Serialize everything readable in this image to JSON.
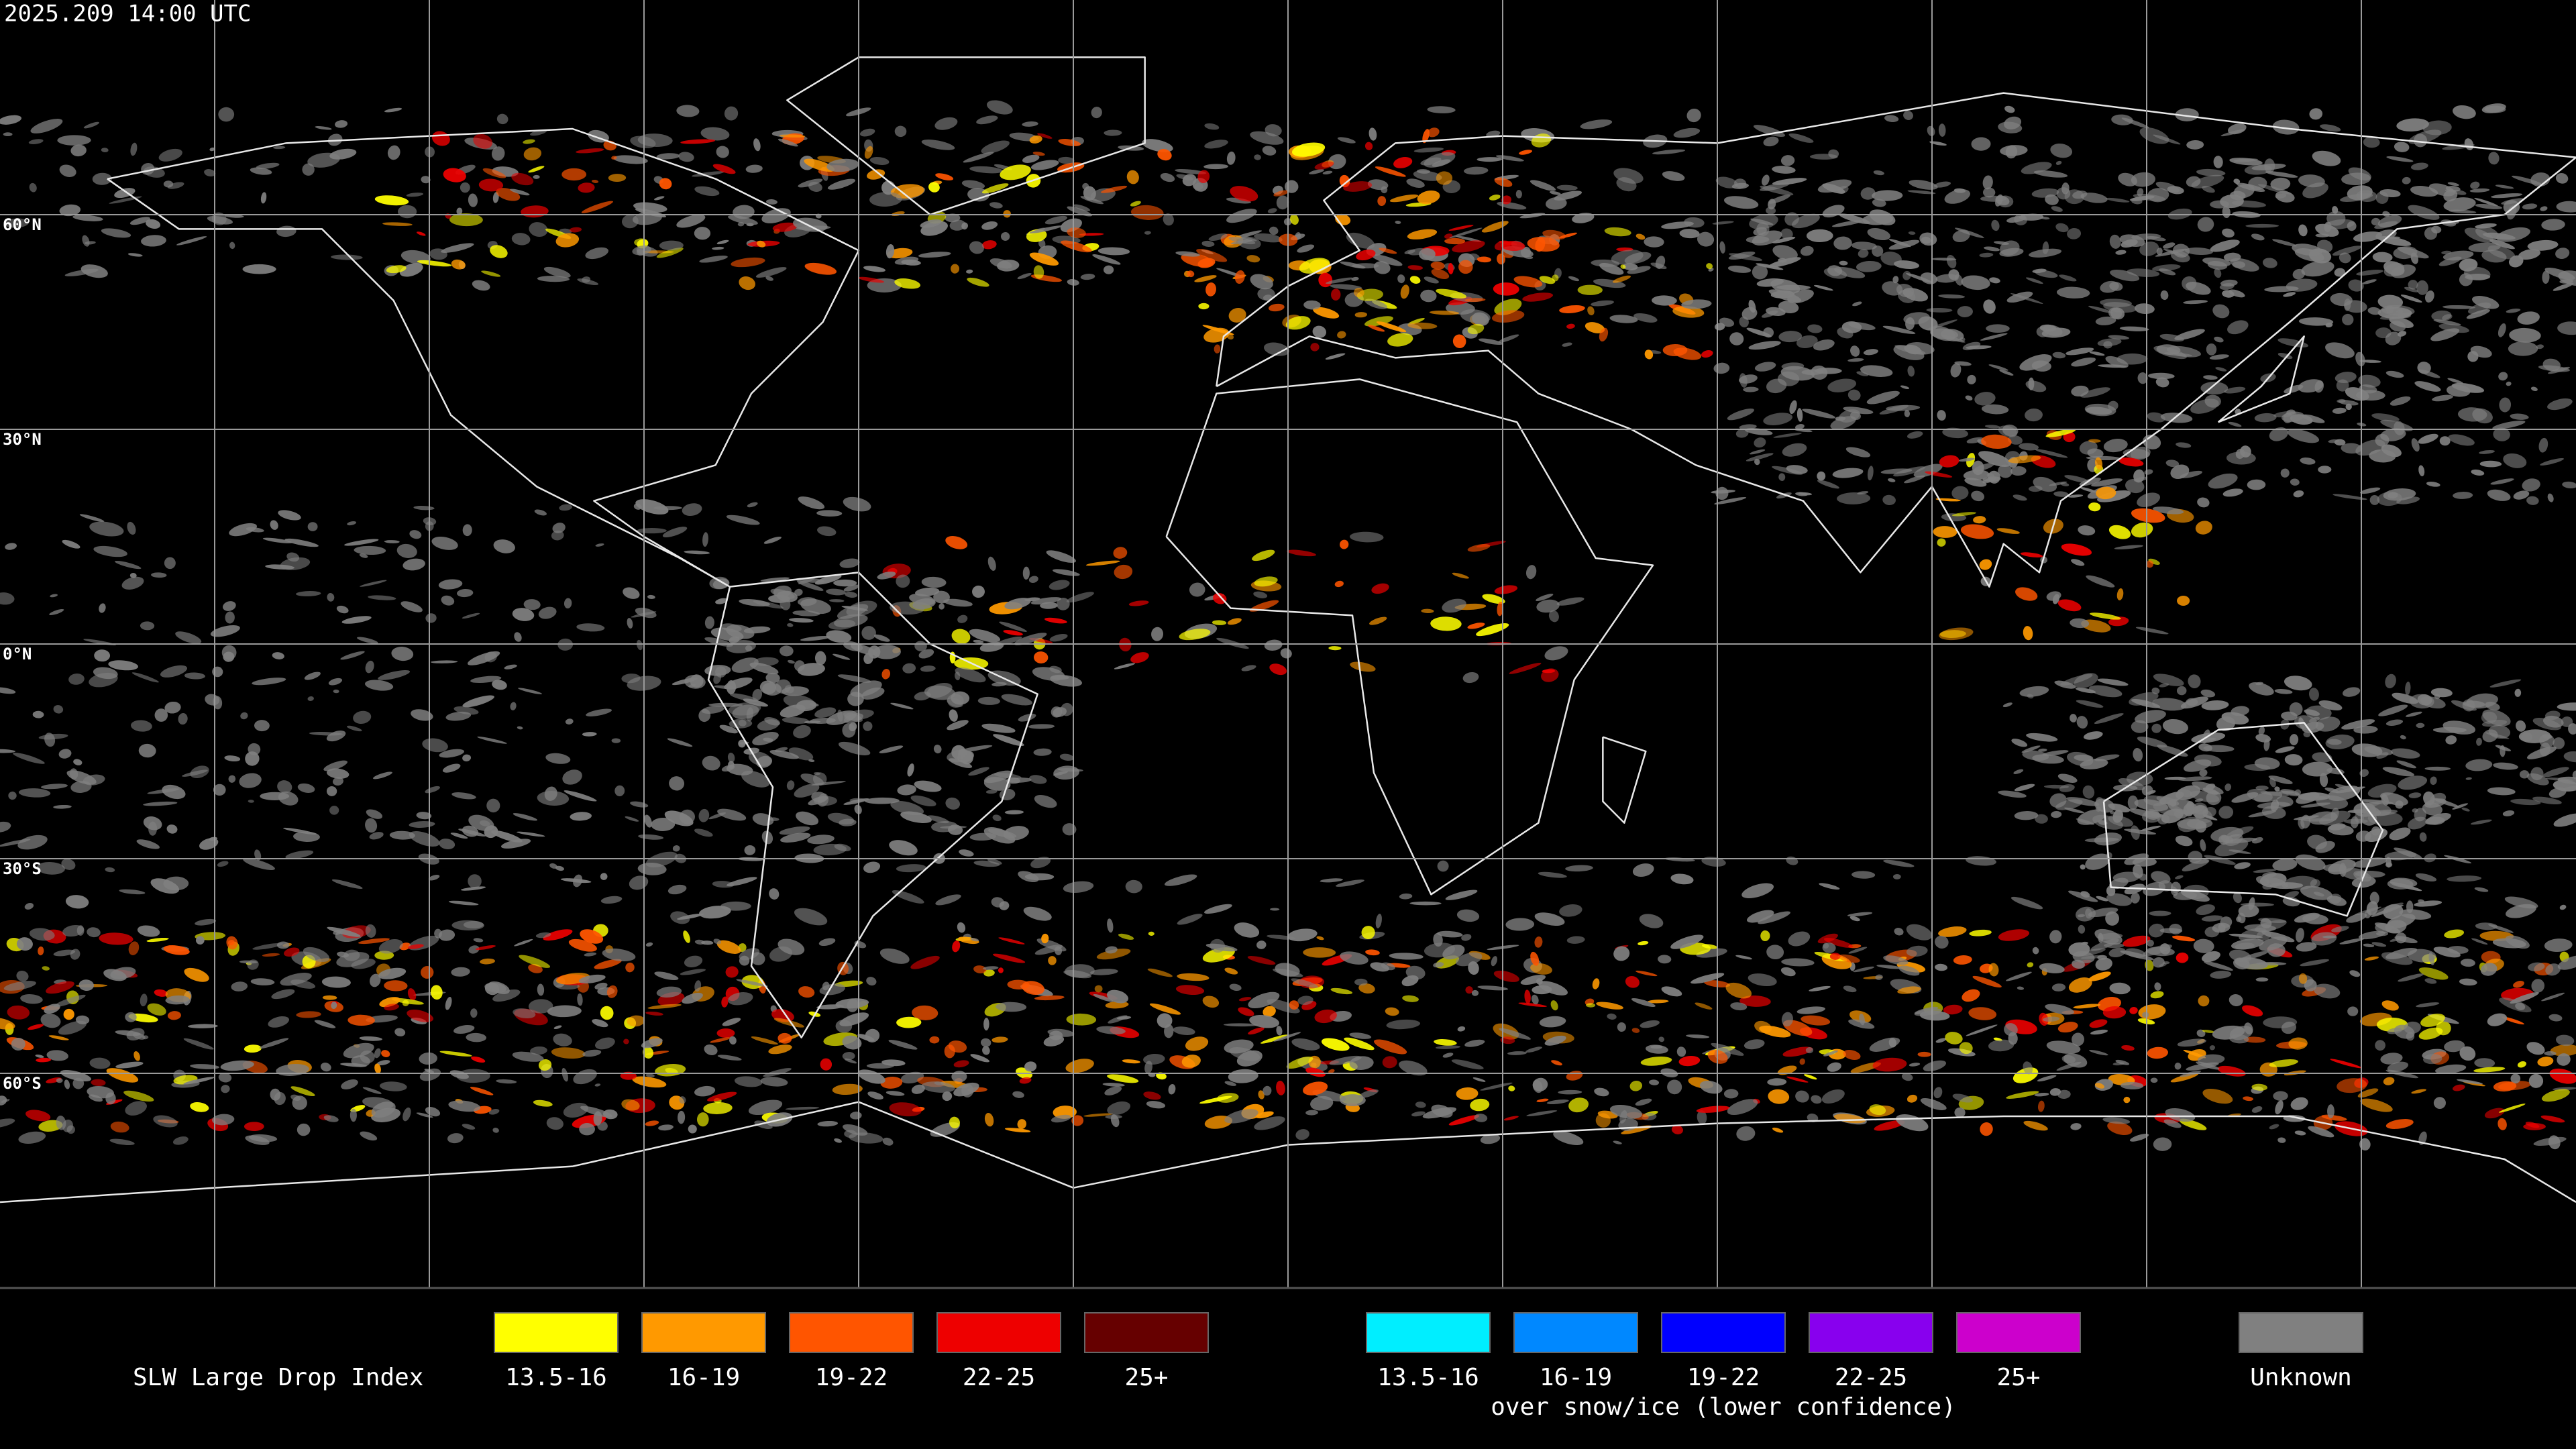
{
  "header": {
    "timestamp": "2025.209 14:00 UTC"
  },
  "map": {
    "latitude_labels": [
      "60°N",
      "30°N",
      "0°N",
      "30°S",
      "60°S"
    ]
  },
  "legend": {
    "title": "SLW Large Drop Index",
    "groups": [
      {
        "items": [
          {
            "label": "13.5-16",
            "color": "#ffff00"
          },
          {
            "label": "16-19",
            "color": "#ff9900"
          },
          {
            "label": "19-22",
            "color": "#ff5500"
          },
          {
            "label": "22-25",
            "color": "#ee0000"
          },
          {
            "label": "25+",
            "color": "#660000"
          }
        ]
      },
      {
        "items": [
          {
            "label": "13.5-16",
            "color": "#00eeff"
          },
          {
            "label": "16-19",
            "color": "#0088ff"
          },
          {
            "label": "19-22",
            "color": "#0000ff"
          },
          {
            "label": "22-25",
            "color": "#8800ee"
          },
          {
            "label": "25+",
            "color": "#cc00cc"
          }
        ],
        "note": "over snow/ice (lower confidence)"
      },
      {
        "items": [
          {
            "label": "Unknown",
            "color": "#808080"
          }
        ]
      }
    ]
  }
}
